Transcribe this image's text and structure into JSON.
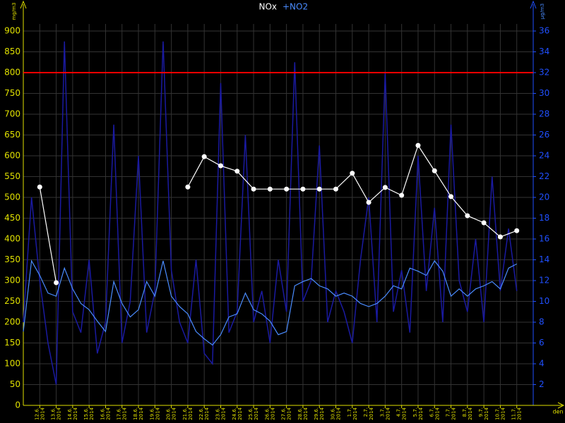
{
  "chart_data": {
    "type": "line",
    "legend": [
      "NOx",
      "+NO2"
    ],
    "y_unit": "mg/m3",
    "y2_unit": "µg/m3",
    "x_label": "den",
    "year": "2014",
    "categories": [
      "12.6.",
      "13.6.",
      "14.6.",
      "15.6.",
      "16.6.",
      "17.6.",
      "18.6.",
      "19.6.",
      "20.6.",
      "21.6.",
      "22.6.",
      "23.6.",
      "24.6.",
      "25.6.",
      "26.6.",
      "27.6.",
      "28.6.",
      "29.6.",
      "30.6.",
      "1.7.",
      "2.7.",
      "3.7.",
      "4.7.",
      "5.7.",
      "6.7.",
      "7.7.",
      "8.7.",
      "9.7.",
      "10.7.",
      "11.7."
    ],
    "xlim": [
      -1,
      30
    ],
    "ylim": [
      0,
      900
    ],
    "yticks": [
      0,
      50,
      100,
      150,
      200,
      250,
      300,
      350,
      400,
      450,
      500,
      550,
      600,
      650,
      700,
      750,
      800,
      850,
      900
    ],
    "y2lim": [
      0,
      36
    ],
    "y2ticks": [
      2,
      4,
      6,
      8,
      10,
      12,
      14,
      16,
      18,
      20,
      22,
      24,
      26,
      28,
      30,
      32,
      34,
      36
    ],
    "limit": 800,
    "limit_color": "#ff0000",
    "grid": true,
    "x": [
      -1,
      -0.5,
      0,
      0.5,
      1,
      1.5,
      2,
      2.5,
      3,
      3.5,
      4,
      4.5,
      5,
      5.5,
      6,
      6.5,
      7,
      7.5,
      8,
      8.5,
      9,
      9.5,
      10,
      10.5,
      11,
      11.5,
      12,
      12.5,
      13,
      13.5,
      14,
      14.5,
      15,
      15.5,
      16,
      16.5,
      17,
      17.5,
      18,
      18.5,
      19,
      19.5,
      20,
      20.5,
      21,
      21.5,
      22,
      22.5,
      23,
      23.5,
      24,
      24.5,
      25,
      25.5,
      26,
      26.5,
      27,
      27.5,
      28,
      28.5,
      29
    ],
    "series": [
      {
        "name": "NOx",
        "color": "#ffffff",
        "values": [
          525,
          295,
          null,
          null,
          null,
          null,
          null,
          null,
          null,
          525,
          598,
          576,
          563,
          520,
          520,
          520,
          520,
          520,
          520,
          558,
          488,
          524,
          505,
          625,
          564,
          502,
          456,
          439,
          405,
          420
        ]
      },
      {
        "name": "+NO2",
        "color": "#1a1aa0",
        "axis": "y2",
        "values": [
          8,
          20,
          12,
          6,
          2,
          35,
          9,
          7,
          14,
          5,
          8,
          27,
          6,
          10,
          24,
          7,
          11,
          35,
          13,
          8,
          6,
          14,
          5,
          4,
          31,
          7,
          9,
          26,
          8,
          11,
          6,
          14,
          9,
          33,
          10,
          12,
          25,
          8,
          11,
          9,
          6,
          14,
          20,
          8,
          32,
          9,
          13,
          7,
          24,
          11,
          19,
          8,
          27,
          12,
          9,
          16,
          8,
          22,
          11,
          17,
          11
        ]
      },
      {
        "color": "#4a8cff",
        "axis": "y2",
        "values": [
          7.1,
          13.9,
          12.5,
          10.8,
          10.5,
          13.2,
          11.2,
          9.8,
          9.2,
          8.1,
          7.1,
          11.9,
          9.8,
          8.5,
          9.2,
          11.9,
          10.5,
          13.9,
          10.5,
          9.5,
          8.8,
          7.1,
          6.4,
          5.8,
          6.8,
          8.5,
          8.8,
          10.8,
          9.2,
          8.8,
          8.1,
          6.8,
          7.1,
          11.5,
          11.9,
          12.2,
          11.5,
          11.2,
          10.5,
          10.8,
          10.5,
          9.8,
          9.5,
          9.8,
          10.5,
          11.5,
          11.2,
          13.2,
          12.9,
          12.5,
          13.9,
          12.9,
          10.5,
          11.2,
          10.5,
          11.2,
          11.5,
          11.9,
          11.2,
          13.2,
          13.6
        ]
      }
    ]
  }
}
